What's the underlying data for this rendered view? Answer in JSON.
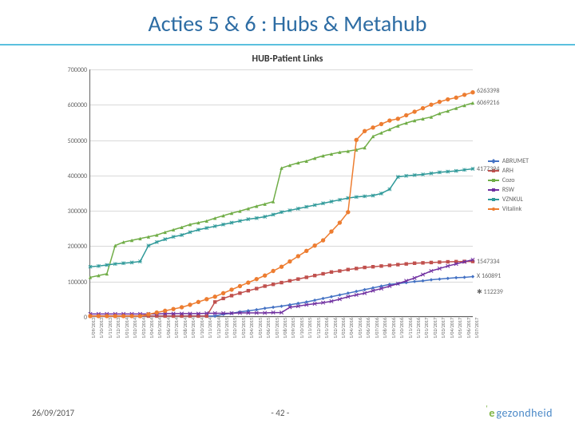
{
  "slide": {
    "title": "Acties 5 & 6 : Hubs & Metahub",
    "title_color": "#2e6da4",
    "rule_color": "#5bc0de"
  },
  "footer": {
    "date": "26/09/2017",
    "page": "- 42 -",
    "logo_e": "e",
    "logo_text": "gezondheid"
  },
  "chart": {
    "title": "HUB-Patient Links",
    "background": "#ffffff",
    "grid_color": "#d9d9d9",
    "ylim": [
      0,
      700000
    ],
    "ytick_step": 100000,
    "yticks": [
      "0",
      "100000",
      "200000",
      "300000",
      "400000",
      "500000",
      "600000",
      "700000"
    ],
    "x_categories": [
      "1/09/2013",
      "1/10/2013",
      "1/11/2013",
      "1/12/2013",
      "1/01/2014",
      "1/02/2014",
      "1/03/2014",
      "1/04/2014",
      "1/05/2014",
      "1/06/2014",
      "1/07/2014",
      "1/08/2014",
      "1/09/2014",
      "1/10/2014",
      "1/11/2014",
      "1/12/2014",
      "1/01/2015",
      "1/02/2015",
      "1/03/2015",
      "1/04/2015",
      "1/05/2015",
      "1/06/2015",
      "1/07/2015",
      "1/08/2015",
      "1/09/2015",
      "1/10/2015",
      "1/11/2015",
      "1/12/2015",
      "1/01/2016",
      "1/02/2016",
      "1/03/2016",
      "1/04/2016",
      "1/05/2016",
      "1/06/2016",
      "1/07/2016",
      "1/08/2016",
      "1/09/2016",
      "1/10/2016",
      "1/11/2016",
      "1/12/2016",
      "1/01/2017",
      "1/02/2017",
      "1/03/2017",
      "1/04/2017",
      "1/05/2017",
      "1/06/2017",
      "1/07/2017"
    ],
    "end_labels": [
      {
        "text": "6263398",
        "y": 640000
      },
      {
        "text": "6069216",
        "y": 605000
      },
      {
        "text": "4177394",
        "y": 418000
      },
      {
        "text": "1547334",
        "y": 155000
      },
      {
        "text": "X 160891",
        "y": 115000
      },
      {
        "text": "✱ 112239",
        "y": 70000
      }
    ],
    "series": [
      {
        "name": "ABRUMET",
        "color": "#4472c4",
        "marker": "diamond",
        "values": [
          0,
          0,
          0,
          0,
          0,
          0,
          0,
          0,
          0,
          0,
          0,
          0,
          0,
          0,
          0,
          0,
          5000,
          8000,
          12000,
          15000,
          18000,
          22000,
          25000,
          28000,
          32000,
          36000,
          40000,
          45000,
          50000,
          55000,
          60000,
          65000,
          70000,
          75000,
          80000,
          85000,
          90000,
          92000,
          95000,
          98000,
          100000,
          103000,
          105000,
          107000,
          109000,
          110000,
          112000
        ]
      },
      {
        "name": "ARH",
        "color": "#c0504d",
        "marker": "square",
        "values": [
          0,
          0,
          0,
          0,
          0,
          0,
          0,
          0,
          0,
          0,
          0,
          0,
          0,
          0,
          0,
          40000,
          50000,
          58000,
          65000,
          72000,
          78000,
          85000,
          90000,
          95000,
          100000,
          105000,
          110000,
          115000,
          120000,
          125000,
          128000,
          132000,
          135000,
          138000,
          140000,
          142000,
          144000,
          146000,
          148000,
          150000,
          151000,
          152000,
          153000,
          154000,
          154500,
          155000,
          155000
        ]
      },
      {
        "name": "Cozo",
        "color": "#70ad47",
        "marker": "triangle",
        "values": [
          110000,
          115000,
          120000,
          200000,
          210000,
          215000,
          220000,
          225000,
          230000,
          238000,
          245000,
          252000,
          260000,
          265000,
          270000,
          278000,
          285000,
          292000,
          298000,
          305000,
          312000,
          318000,
          325000,
          420000,
          428000,
          435000,
          440000,
          448000,
          455000,
          460000,
          465000,
          468000,
          472000,
          478000,
          510000,
          520000,
          530000,
          540000,
          548000,
          555000,
          560000,
          565000,
          575000,
          582000,
          590000,
          598000,
          605000
        ]
      },
      {
        "name": "RSW",
        "color": "#7030a0",
        "marker": "x",
        "values": [
          6000,
          6000,
          6000,
          6000,
          6000,
          6000,
          6000,
          6000,
          6000,
          7000,
          7000,
          7000,
          7000,
          7000,
          8000,
          8000,
          8000,
          8000,
          9000,
          9000,
          9000,
          9000,
          10000,
          10000,
          25000,
          28000,
          32000,
          35000,
          38000,
          42000,
          48000,
          55000,
          60000,
          65000,
          72000,
          78000,
          85000,
          92000,
          100000,
          108000,
          118000,
          128000,
          135000,
          142000,
          148000,
          154000,
          160000
        ]
      },
      {
        "name": "VZNKUL",
        "color": "#2e9999",
        "marker": "star",
        "values": [
          140000,
          142000,
          145000,
          148000,
          150000,
          152000,
          155000,
          200000,
          210000,
          218000,
          225000,
          230000,
          238000,
          245000,
          250000,
          255000,
          260000,
          265000,
          270000,
          275000,
          278000,
          282000,
          288000,
          295000,
          300000,
          305000,
          310000,
          315000,
          320000,
          325000,
          330000,
          335000,
          338000,
          340000,
          342000,
          348000,
          360000,
          395000,
          398000,
          400000,
          402000,
          405000,
          408000,
          410000,
          412000,
          415000,
          418000
        ]
      },
      {
        "name": "Vitalink",
        "color": "#ed7d31",
        "marker": "circle",
        "values": [
          0,
          0,
          0,
          0,
          0,
          0,
          0,
          5000,
          10000,
          15000,
          20000,
          25000,
          32000,
          40000,
          48000,
          55000,
          65000,
          75000,
          85000,
          95000,
          105000,
          115000,
          128000,
          140000,
          155000,
          170000,
          185000,
          200000,
          215000,
          240000,
          265000,
          295000,
          500000,
          525000,
          535000,
          545000,
          555000,
          560000,
          570000,
          580000,
          590000,
          600000,
          608000,
          615000,
          620000,
          628000,
          635000
        ]
      }
    ]
  }
}
